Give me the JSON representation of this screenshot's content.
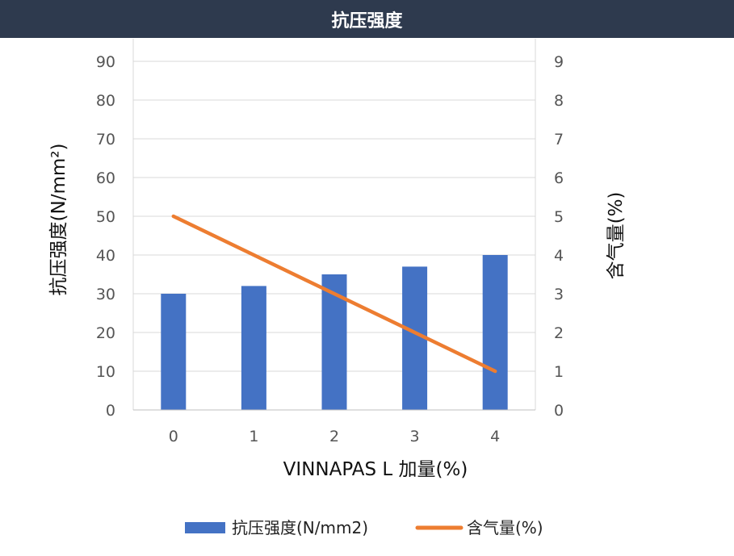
{
  "title": "抗压强度",
  "chart_data": {
    "type": "bar",
    "title": "抗压强度",
    "categories": [
      "0",
      "1",
      "2",
      "3",
      "4"
    ],
    "xlabel": "VINNAPAS L 加量(%)",
    "ylabel": "抗压强度(N/mm²)",
    "y2label": "含气量(%)",
    "ylim": [
      0,
      90
    ],
    "y2lim": [
      0,
      9
    ],
    "yticks": [
      "0",
      "10",
      "20",
      "30",
      "40",
      "50",
      "60",
      "70",
      "80",
      "90"
    ],
    "y2ticks": [
      "0",
      "1",
      "2",
      "3",
      "4",
      "5",
      "6",
      "7",
      "8",
      "9"
    ],
    "grid": true,
    "legend_position": "bottom",
    "series": [
      {
        "name": "抗压强度(N/mm2)",
        "type": "bar",
        "axis": "left",
        "color": "#4472c4",
        "values": [
          30,
          32,
          35,
          37,
          40
        ]
      },
      {
        "name": "含气量(%)",
        "type": "line",
        "axis": "right",
        "color": "#ed7d31",
        "values": [
          5,
          4,
          3,
          2,
          1
        ]
      }
    ]
  }
}
